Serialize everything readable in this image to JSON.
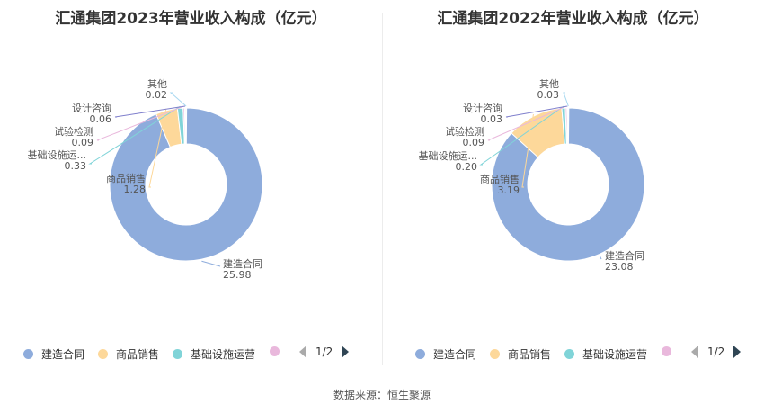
{
  "source": "数据来源：恒生聚源",
  "legend_page": "1/2",
  "legend_visible": [
    "建造合同",
    "商品销售",
    "基础设施运营",
    ""
  ],
  "chart_data": [
    {
      "type": "pie",
      "title": "汇通集团2023年营业收入构成（亿元）",
      "categories": [
        "建造合同",
        "商品销售",
        "基础设施运营",
        "试验检测",
        "设计咨询",
        "其他"
      ],
      "label_names": [
        "建造合同",
        "商品销售",
        "基础设施运...",
        "试验检测",
        "设计咨询",
        "其他"
      ],
      "value_labels": [
        "25.98",
        "1.28",
        "0.33",
        "0.09",
        "0.06",
        "0.02"
      ],
      "values": [
        25.98,
        1.28,
        0.33,
        0.09,
        0.06,
        0.02
      ],
      "colors": [
        "#8eacdc",
        "#fdd89a",
        "#80d4d8",
        "#e9b8dc",
        "#7f7fcc",
        "#a8d8f0"
      ],
      "legend_position": "bottom"
    },
    {
      "type": "pie",
      "title": "汇通集团2022年营业收入构成（亿元）",
      "categories": [
        "建造合同",
        "商品销售",
        "基础设施运营",
        "试验检测",
        "设计咨询",
        "其他"
      ],
      "label_names": [
        "建造合同",
        "商品销售",
        "基础设施运...",
        "试验检测",
        "设计咨询",
        "其他"
      ],
      "value_labels": [
        "23.08",
        "3.19",
        "0.20",
        "0.09",
        "0.03",
        "0.03"
      ],
      "values": [
        23.08,
        3.19,
        0.2,
        0.09,
        0.03,
        0.03
      ],
      "colors": [
        "#8eacdc",
        "#fdd89a",
        "#80d4d8",
        "#e9b8dc",
        "#7f7fcc",
        "#a8d8f0"
      ],
      "legend_position": "bottom"
    }
  ]
}
